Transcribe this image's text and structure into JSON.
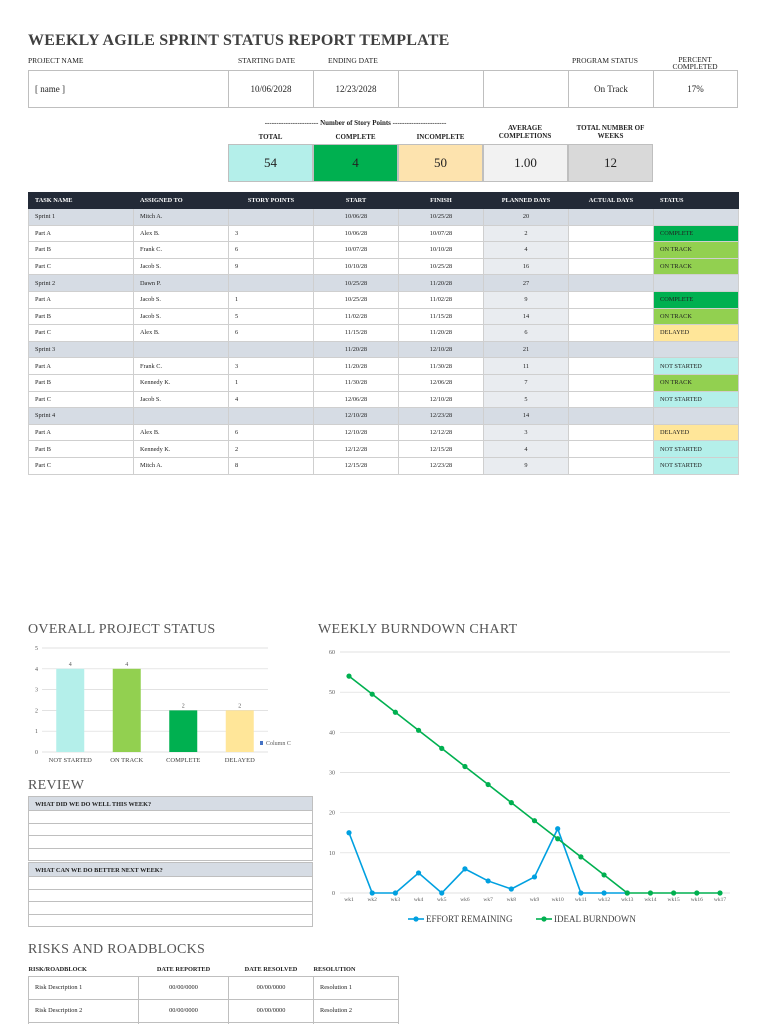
{
  "title": "WEEKLY AGILE SPRINT STATUS REPORT TEMPLATE",
  "project": {
    "labels": {
      "project_name": "PROJECT NAME",
      "starting_date": "STARTING DATE",
      "ending_date": "ENDING DATE",
      "program_status": "PROGRAM STATUS",
      "percent_completed": "PERCENT COMPLETED"
    },
    "values": {
      "project_name": "[ name ]",
      "starting_date": "10/06/2028",
      "ending_date": "12/23/2028",
      "program_status": "On Track",
      "percent_completed": "17%"
    }
  },
  "summary": {
    "group_label": "----------------------- Number of Story Points -----------------------",
    "headers": {
      "total": "TOTAL",
      "complete": "COMPLETE",
      "incomplete": "INCOMPLETE",
      "average": "AVERAGE COMPLETIONS",
      "weeks": "TOTAL NUMBER OF WEEKS"
    },
    "values": {
      "total": "54",
      "complete": "4",
      "incomplete": "50",
      "average": "1.00",
      "weeks": "12"
    },
    "colors": {
      "total": "#b4efea",
      "complete": "#00b050",
      "incomplete": "#fde3ae",
      "average": "#f2f2f2",
      "weeks": "#d9d9d9"
    }
  },
  "tasks": {
    "headers": [
      "TASK NAME",
      "ASSIGNED TO",
      "STORY POINTS",
      "START",
      "FINISH",
      "PLANNED DAYS",
      "ACTUAL DAYS",
      "STATUS"
    ],
    "rows": [
      {
        "type": "sprint",
        "task": "Sprint 1",
        "assigned": "Mitch A.",
        "points": "",
        "start": "10/06/28",
        "finish": "10/25/28",
        "planned": "20",
        "actual": "",
        "status": "",
        "status_key": ""
      },
      {
        "type": "part",
        "task": "Part A",
        "assigned": "Alex B.",
        "points": "3",
        "start": "10/06/28",
        "finish": "10/07/28",
        "planned": "2",
        "actual": "",
        "status": "COMPLETE",
        "status_key": "complete"
      },
      {
        "type": "part",
        "task": "Part B",
        "assigned": "Frank C.",
        "points": "6",
        "start": "10/07/28",
        "finish": "10/10/28",
        "planned": "4",
        "actual": "",
        "status": "ON TRACK",
        "status_key": "ontrack"
      },
      {
        "type": "part",
        "task": "Part C",
        "assigned": "Jacob S.",
        "points": "9",
        "start": "10/10/28",
        "finish": "10/25/28",
        "planned": "16",
        "actual": "",
        "status": "ON TRACK",
        "status_key": "ontrack"
      },
      {
        "type": "sprint",
        "task": "Sprint 2",
        "assigned": "Dawn P.",
        "points": "",
        "start": "10/25/28",
        "finish": "11/20/28",
        "planned": "27",
        "actual": "",
        "status": "",
        "status_key": ""
      },
      {
        "type": "part",
        "task": "Part A",
        "assigned": "Jacob S.",
        "points": "1",
        "start": "10/25/28",
        "finish": "11/02/28",
        "planned": "9",
        "actual": "",
        "status": "COMPLETE",
        "status_key": "complete"
      },
      {
        "type": "part",
        "task": "Part B",
        "assigned": "Jacob S.",
        "points": "5",
        "start": "11/02/28",
        "finish": "11/15/28",
        "planned": "14",
        "actual": "",
        "status": "ON TRACK",
        "status_key": "ontrack"
      },
      {
        "type": "part",
        "task": "Part C",
        "assigned": "Alex B.",
        "points": "6",
        "start": "11/15/28",
        "finish": "11/20/28",
        "planned": "6",
        "actual": "",
        "status": "DELAYED",
        "status_key": "delayed"
      },
      {
        "type": "sprint",
        "task": "Sprint 3",
        "assigned": "",
        "points": "",
        "start": "11/20/28",
        "finish": "12/10/28",
        "planned": "21",
        "actual": "",
        "status": "",
        "status_key": ""
      },
      {
        "type": "part",
        "task": "Part A",
        "assigned": "Frank C.",
        "points": "3",
        "start": "11/20/28",
        "finish": "11/30/28",
        "planned": "11",
        "actual": "",
        "status": "NOT STARTED",
        "status_key": "notstarted"
      },
      {
        "type": "part",
        "task": "Part B",
        "assigned": "Kennedy K.",
        "points": "1",
        "start": "11/30/28",
        "finish": "12/06/28",
        "planned": "7",
        "actual": "",
        "status": "ON TRACK",
        "status_key": "ontrack"
      },
      {
        "type": "part",
        "task": "Part C",
        "assigned": "Jacob S.",
        "points": "4",
        "start": "12/06/28",
        "finish": "12/10/28",
        "planned": "5",
        "actual": "",
        "status": "NOT STARTED",
        "status_key": "notstarted"
      },
      {
        "type": "sprint",
        "task": "Sprint 4",
        "assigned": "",
        "points": "",
        "start": "12/10/28",
        "finish": "12/23/28",
        "planned": "14",
        "actual": "",
        "status": "",
        "status_key": ""
      },
      {
        "type": "part",
        "task": "Part A",
        "assigned": "Alex B.",
        "points": "6",
        "start": "12/10/28",
        "finish": "12/12/28",
        "planned": "3",
        "actual": "",
        "status": "DELAYED",
        "status_key": "delayed"
      },
      {
        "type": "part",
        "task": "Part B",
        "assigned": "Kennedy K.",
        "points": "2",
        "start": "12/12/28",
        "finish": "12/15/28",
        "planned": "4",
        "actual": "",
        "status": "NOT STARTED",
        "status_key": "notstarted"
      },
      {
        "type": "part",
        "task": "Part C",
        "assigned": "Mitch A.",
        "points": "8",
        "start": "12/15/28",
        "finish": "12/23/28",
        "planned": "9",
        "actual": "",
        "status": "NOT STARTED",
        "status_key": "notstarted"
      }
    ]
  },
  "overall_status": {
    "title": "OVERALL PROJECT STATUS"
  },
  "burndown": {
    "title": "WEEKLY BURNDOWN CHART"
  },
  "review": {
    "title": "REVIEW",
    "q1": "WHAT DID WE DO WELL THIS WEEK?",
    "q2": "WHAT CAN WE DO BETTER NEXT WEEK?"
  },
  "risks": {
    "title": "RISKS AND ROADBLOCKS",
    "headers": [
      "RISK/ROADBLOCK",
      "DATE REPORTED",
      "DATE RESOLVED",
      "RESOLUTION"
    ],
    "rows": [
      [
        "Risk Description 1",
        "00/00/0000",
        "00/00/0000",
        "Resolution 1"
      ],
      [
        "Risk Description 2",
        "00/00/0000",
        "00/00/0000",
        "Resolution 2"
      ],
      [
        "",
        "",
        "",
        ""
      ]
    ]
  },
  "chart_data": [
    {
      "type": "bar",
      "title": "OVERALL PROJECT STATUS",
      "categories": [
        "NOT STARTED",
        "ON TRACK",
        "COMPLETE",
        "DELAYED"
      ],
      "values": [
        4,
        4,
        2,
        2
      ],
      "colors": [
        "#b4efea",
        "#92d050",
        "#00b050",
        "#ffe699"
      ],
      "legend": "Column C",
      "legend_position": "right",
      "ylim": [
        0,
        5
      ],
      "yticks": [
        0,
        1,
        2,
        3,
        4,
        5
      ],
      "grid": true
    },
    {
      "type": "line",
      "title": "WEEKLY BURNDOWN CHART",
      "categories": [
        "wk1",
        "wk2",
        "wk3",
        "wk4",
        "wk5",
        "wk6",
        "wk7",
        "wk8",
        "wk9",
        "wk10",
        "wk11",
        "wk12",
        "wk13",
        "wk14",
        "wk15",
        "wk16",
        "wk17"
      ],
      "ylim": [
        0,
        60
      ],
      "yticks": [
        0,
        10,
        20,
        30,
        40,
        50,
        60
      ],
      "grid": true,
      "legend_position": "bottom",
      "series": [
        {
          "name": "EFFORT REMAINING",
          "color": "#00a0e0",
          "values": [
            15,
            0,
            0,
            5,
            0,
            6,
            3,
            1,
            4,
            16,
            0,
            0,
            0,
            null,
            null,
            null,
            null
          ]
        },
        {
          "name": "IDEAL BURNDOWN",
          "color": "#00b050",
          "values": [
            54,
            49.5,
            45,
            40.5,
            36,
            31.5,
            27,
            22.5,
            18,
            13.5,
            9,
            4.5,
            0,
            0,
            0,
            0,
            0
          ]
        }
      ]
    }
  ]
}
